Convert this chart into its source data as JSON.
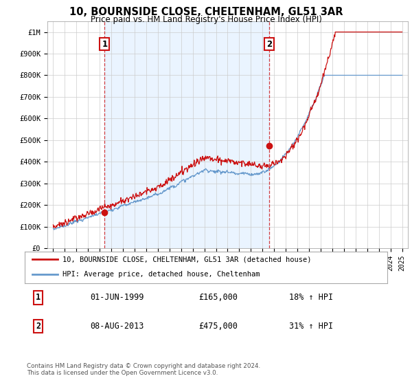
{
  "title": "10, BOURNSIDE CLOSE, CHELTENHAM, GL51 3AR",
  "subtitle": "Price paid vs. HM Land Registry's House Price Index (HPI)",
  "ylim": [
    0,
    1050000
  ],
  "yticks": [
    0,
    100000,
    200000,
    300000,
    400000,
    500000,
    600000,
    700000,
    800000,
    900000,
    1000000
  ],
  "ytick_labels": [
    "£0",
    "£100K",
    "£200K",
    "£300K",
    "£400K",
    "£500K",
    "£600K",
    "£700K",
    "£800K",
    "£900K",
    "£1M"
  ],
  "sale1_year": 1999.42,
  "sale1_price": 165000,
  "sale2_year": 2013.58,
  "sale2_price": 475000,
  "hpi_color": "#6699cc",
  "price_color": "#cc1111",
  "vline_color": "#cc1111",
  "shade_color": "#ddeeff",
  "grid_color": "#cccccc",
  "background_color": "#ffffff",
  "legend_label_price": "10, BOURNSIDE CLOSE, CHELTENHAM, GL51 3AR (detached house)",
  "legend_label_hpi": "HPI: Average price, detached house, Cheltenham",
  "footnote": "Contains HM Land Registry data © Crown copyright and database right 2024.\nThis data is licensed under the Open Government Licence v3.0.",
  "table_rows": [
    {
      "num": "1",
      "date": "01-JUN-1999",
      "price": "£165,000",
      "hpi": "18% ↑ HPI"
    },
    {
      "num": "2",
      "date": "08-AUG-2013",
      "price": "£475,000",
      "hpi": "31% ↑ HPI"
    }
  ]
}
